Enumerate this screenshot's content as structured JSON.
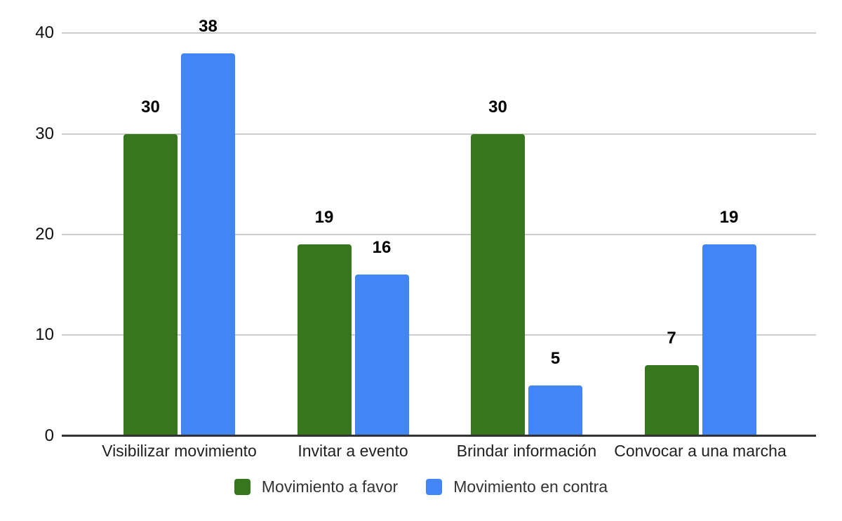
{
  "chart_data": {
    "type": "bar",
    "title": "",
    "xlabel": "",
    "ylabel": "",
    "categories": [
      "Visibilizar movimiento",
      "Invitar a evento",
      "Brindar información",
      "Convocar a una marcha"
    ],
    "series": [
      {
        "name": "Movimiento a favor",
        "color": "#38761d",
        "values": [
          30,
          19,
          30,
          7
        ]
      },
      {
        "name": "Movimiento en contra",
        "color": "#4285f4",
        "values": [
          38,
          16,
          5,
          19
        ]
      }
    ],
    "yticks": [
      0,
      10,
      20,
      30,
      40
    ],
    "ylim": [
      0,
      40
    ],
    "grid": true,
    "data_labels": true,
    "legend_position": "bottom"
  },
  "colors": {
    "background": "#ffffff",
    "gridline": "#cccccc",
    "axis": "#333333",
    "tick_text": "#111111",
    "category_text": "#1f1f1f",
    "legend_text": "#333333",
    "value_label_text": "#000000"
  }
}
